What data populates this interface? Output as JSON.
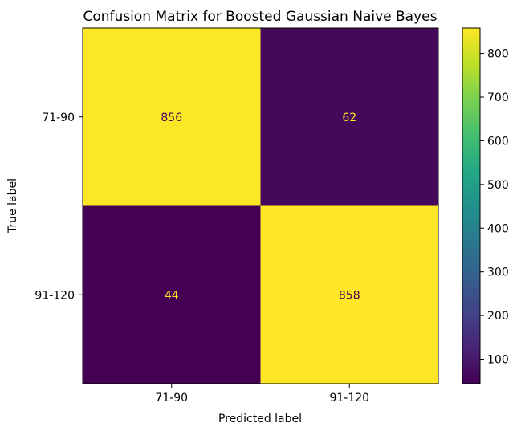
{
  "chart_data": {
    "type": "heatmap",
    "title": "Confusion Matrix for Boosted Gaussian Naive Bayes",
    "xlabel": "Predicted label",
    "ylabel": "True label",
    "x_categories": [
      "71-90",
      "91-120"
    ],
    "y_categories": [
      "71-90",
      "91-120"
    ],
    "values": [
      [
        856,
        62
      ],
      [
        44,
        858
      ]
    ],
    "colormap": "viridis",
    "colorbar": {
      "range": [
        44,
        858
      ],
      "ticks": [
        100,
        200,
        300,
        400,
        500,
        600,
        700,
        800
      ]
    },
    "cell_text_colors": {
      "on_dark": "#fde725",
      "on_light": "#440154"
    }
  }
}
